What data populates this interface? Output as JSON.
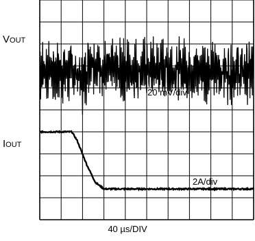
{
  "chart_data": {
    "type": "line",
    "title": "",
    "grid": true,
    "x_divisions": 10,
    "y_divisions": 10,
    "xlabel": "40 µs/DIV",
    "series": [
      {
        "name": "VOUT",
        "label_main": "V",
        "label_sub": "OUT",
        "scale": "20 mV/div",
        "offset_div": 6.8,
        "ripple_div": 1.6,
        "disturbance": [
          {
            "time_div": 2.0,
            "deflection_div": -0.5
          },
          {
            "time_div": 2.4,
            "deflection_div": 0.6
          },
          {
            "time_div": 2.9,
            "deflection_div": 0.1
          }
        ]
      },
      {
        "name": "IOUT",
        "label_main": "I",
        "label_sub": "OUT",
        "scale": "2A/div",
        "points": [
          {
            "time_div": 0.0,
            "level_div": 4.0
          },
          {
            "time_div": 1.5,
            "level_div": 4.0
          },
          {
            "time_div": 1.75,
            "level_div": 3.6
          },
          {
            "time_div": 2.2,
            "level_div": 2.5
          },
          {
            "time_div": 2.6,
            "level_div": 1.7
          },
          {
            "time_div": 3.0,
            "level_div": 1.4
          },
          {
            "time_div": 10.0,
            "level_div": 1.4
          }
        ]
      }
    ],
    "color": "#000000"
  }
}
